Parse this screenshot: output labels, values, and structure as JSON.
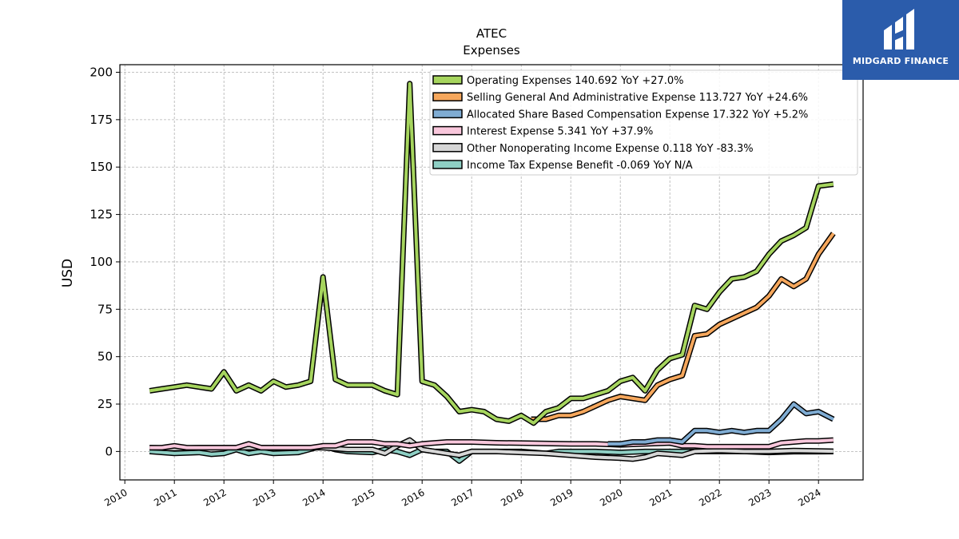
{
  "chart_data": {
    "type": "line",
    "title": "ATEC",
    "subtitle": "Expenses",
    "ylabel": "USD",
    "xlabel": "",
    "xlim": [
      2009.9,
      2024.9
    ],
    "ylim": [
      -15,
      204
    ],
    "y_ticks": [
      0,
      25,
      50,
      75,
      100,
      125,
      150,
      175,
      200
    ],
    "x_ticks": [
      2010,
      2011,
      2012,
      2013,
      2014,
      2015,
      2016,
      2017,
      2018,
      2019,
      2020,
      2021,
      2022,
      2023,
      2024
    ],
    "grid": true,
    "legend_position": "top-right",
    "series": [
      {
        "name": "Operating Expenses",
        "legend": "Operating Expenses  140.692 YoY +27.0%",
        "color": "#a6d55e",
        "points": [
          [
            2010.5,
            32
          ],
          [
            2010.75,
            33
          ],
          [
            2011.0,
            34
          ],
          [
            2011.25,
            35
          ],
          [
            2011.5,
            34
          ],
          [
            2011.75,
            33
          ],
          [
            2012.0,
            42
          ],
          [
            2012.25,
            32
          ],
          [
            2012.5,
            35
          ],
          [
            2012.75,
            32
          ],
          [
            2013.0,
            37
          ],
          [
            2013.25,
            34
          ],
          [
            2013.5,
            35
          ],
          [
            2013.75,
            37
          ],
          [
            2014.0,
            92
          ],
          [
            2014.25,
            38
          ],
          [
            2014.5,
            35
          ],
          [
            2014.75,
            35
          ],
          [
            2015.0,
            35
          ],
          [
            2015.25,
            32
          ],
          [
            2015.5,
            30
          ],
          [
            2015.75,
            194
          ],
          [
            2016.0,
            37
          ],
          [
            2016.25,
            35
          ],
          [
            2016.5,
            29
          ],
          [
            2016.75,
            21
          ],
          [
            2017.0,
            22
          ],
          [
            2017.25,
            21
          ],
          [
            2017.5,
            17
          ],
          [
            2017.75,
            16
          ],
          [
            2018.0,
            19
          ],
          [
            2018.25,
            15
          ],
          [
            2018.5,
            21
          ],
          [
            2018.75,
            23
          ],
          [
            2019.0,
            28
          ],
          [
            2019.25,
            28
          ],
          [
            2019.5,
            30
          ],
          [
            2019.75,
            32
          ],
          [
            2020.0,
            37
          ],
          [
            2020.25,
            39
          ],
          [
            2020.5,
            32
          ],
          [
            2020.75,
            43
          ],
          [
            2021.0,
            49
          ],
          [
            2021.25,
            51
          ],
          [
            2021.5,
            77
          ],
          [
            2021.75,
            75
          ],
          [
            2022.0,
            84
          ],
          [
            2022.25,
            91
          ],
          [
            2022.5,
            92
          ],
          [
            2022.75,
            95
          ],
          [
            2023.0,
            104
          ],
          [
            2023.25,
            111
          ],
          [
            2023.5,
            114
          ],
          [
            2023.75,
            118
          ],
          [
            2024.0,
            140
          ],
          [
            2024.3,
            141
          ]
        ]
      },
      {
        "name": "Selling General And Administrative Expense",
        "legend": "Selling General And Administrative Expense  113.727 YoY +24.6%",
        "color": "#f6a75c",
        "points": [
          [
            2018.2,
            17
          ],
          [
            2018.5,
            17
          ],
          [
            2018.75,
            19
          ],
          [
            2019.0,
            19
          ],
          [
            2019.25,
            21
          ],
          [
            2019.5,
            24
          ],
          [
            2019.75,
            27
          ],
          [
            2020.0,
            29
          ],
          [
            2020.25,
            28
          ],
          [
            2020.5,
            27
          ],
          [
            2020.75,
            35
          ],
          [
            2021.0,
            38
          ],
          [
            2021.25,
            40
          ],
          [
            2021.5,
            61
          ],
          [
            2021.75,
            62
          ],
          [
            2022.0,
            67
          ],
          [
            2022.25,
            70
          ],
          [
            2022.5,
            73
          ],
          [
            2022.75,
            76
          ],
          [
            2023.0,
            82
          ],
          [
            2023.25,
            91
          ],
          [
            2023.5,
            87
          ],
          [
            2023.75,
            91
          ],
          [
            2024.0,
            104
          ],
          [
            2024.3,
            115
          ]
        ]
      },
      {
        "name": "Allocated Share Based Compensation Expense",
        "legend": "Allocated Share Based Compensation Expense  17.322 YoY +5.2%",
        "color": "#7facd3",
        "points": [
          [
            2019.75,
            4
          ],
          [
            2020.0,
            4
          ],
          [
            2020.25,
            5
          ],
          [
            2020.5,
            5
          ],
          [
            2020.75,
            6
          ],
          [
            2021.0,
            6
          ],
          [
            2021.25,
            5
          ],
          [
            2021.5,
            11
          ],
          [
            2021.75,
            11
          ],
          [
            2022.0,
            10
          ],
          [
            2022.25,
            11
          ],
          [
            2022.5,
            10
          ],
          [
            2022.75,
            11
          ],
          [
            2023.0,
            11
          ],
          [
            2023.25,
            17
          ],
          [
            2023.5,
            25
          ],
          [
            2023.75,
            20
          ],
          [
            2024.0,
            21
          ],
          [
            2024.3,
            17
          ]
        ]
      },
      {
        "name": "Interest Expense",
        "legend": "Interest Expense  5.341 YoY +37.9%",
        "color": "#f9c7dc",
        "points": [
          [
            2010.5,
            2
          ],
          [
            2010.75,
            2
          ],
          [
            2011.0,
            3
          ],
          [
            2011.25,
            2
          ],
          [
            2011.5,
            2
          ],
          [
            2011.75,
            2
          ],
          [
            2012.0,
            2
          ],
          [
            2012.25,
            2
          ],
          [
            2012.5,
            4
          ],
          [
            2012.75,
            2
          ],
          [
            2013.0,
            2
          ],
          [
            2013.25,
            2
          ],
          [
            2013.5,
            2
          ],
          [
            2013.75,
            2
          ],
          [
            2014.0,
            3
          ],
          [
            2014.25,
            3
          ],
          [
            2014.5,
            5
          ],
          [
            2014.75,
            5
          ],
          [
            2015.0,
            5
          ],
          [
            2015.25,
            4
          ],
          [
            2015.5,
            4
          ],
          [
            2015.75,
            3
          ],
          [
            2016.0,
            4
          ],
          [
            2016.5,
            5
          ],
          [
            2017.0,
            5
          ],
          [
            2017.5,
            4.6
          ],
          [
            2018.0,
            4.4
          ],
          [
            2018.5,
            4.2
          ],
          [
            2019.0,
            4
          ],
          [
            2019.5,
            4
          ],
          [
            2020.0,
            3.5
          ],
          [
            2020.5,
            4
          ],
          [
            2021.0,
            4.5
          ],
          [
            2021.25,
            3
          ],
          [
            2021.5,
            3
          ],
          [
            2021.75,
            2.5
          ],
          [
            2022.0,
            2.5
          ],
          [
            2022.5,
            2.5
          ],
          [
            2023.0,
            2.5
          ],
          [
            2023.25,
            4.5
          ],
          [
            2023.5,
            5
          ],
          [
            2023.75,
            5.5
          ],
          [
            2024.0,
            5.5
          ],
          [
            2024.3,
            6
          ]
        ]
      },
      {
        "name": "Other Nonoperating Income Expense",
        "legend": "Other Nonoperating Income Expense  0.118 YoY -83.3%",
        "color": "#d6d6d6",
        "points": [
          [
            2010.5,
            2
          ],
          [
            2011.0,
            1.5
          ],
          [
            2011.5,
            2
          ],
          [
            2012.0,
            2
          ],
          [
            2012.5,
            2
          ],
          [
            2013.0,
            2
          ],
          [
            2013.5,
            2
          ],
          [
            2014.0,
            2
          ],
          [
            2014.5,
            1
          ],
          [
            2015.0,
            1
          ],
          [
            2015.25,
            -1
          ],
          [
            2015.5,
            3
          ],
          [
            2015.75,
            6
          ],
          [
            2016.0,
            1
          ],
          [
            2016.25,
            0
          ],
          [
            2016.5,
            -1
          ],
          [
            2016.75,
            -2
          ],
          [
            2017.0,
            0
          ],
          [
            2017.5,
            0
          ],
          [
            2018.0,
            -0.5
          ],
          [
            2018.5,
            -1
          ],
          [
            2019.0,
            -2
          ],
          [
            2019.5,
            -3
          ],
          [
            2020.0,
            -3.5
          ],
          [
            2020.25,
            -4
          ],
          [
            2020.5,
            -3
          ],
          [
            2020.75,
            -1
          ],
          [
            2021.0,
            -1.5
          ],
          [
            2021.25,
            -2
          ],
          [
            2021.5,
            0
          ],
          [
            2022.0,
            0.5
          ],
          [
            2022.5,
            0
          ],
          [
            2023.0,
            0
          ],
          [
            2023.5,
            0.5
          ],
          [
            2024.0,
            0.3
          ],
          [
            2024.3,
            0.1
          ]
        ]
      },
      {
        "name": "Income Tax Expense Benefit",
        "legend": "Income Tax Expense Benefit  -0.069 YoY N/A",
        "color": "#8ecfc4",
        "points": [
          [
            2010.5,
            0
          ],
          [
            2011.0,
            -1
          ],
          [
            2011.5,
            -0.5
          ],
          [
            2011.75,
            -1.5
          ],
          [
            2012.0,
            -1
          ],
          [
            2012.25,
            1
          ],
          [
            2012.5,
            -1
          ],
          [
            2012.75,
            0
          ],
          [
            2013.0,
            -1
          ],
          [
            2013.5,
            -0.5
          ],
          [
            2014.0,
            3
          ],
          [
            2014.25,
            1
          ],
          [
            2014.5,
            0
          ],
          [
            2015.0,
            -0.5
          ],
          [
            2015.25,
            1
          ],
          [
            2015.5,
            0
          ],
          [
            2015.75,
            -2
          ],
          [
            2016.0,
            1
          ],
          [
            2016.25,
            0
          ],
          [
            2016.5,
            0
          ],
          [
            2016.75,
            -5
          ],
          [
            2017.0,
            0
          ],
          [
            2017.5,
            0
          ],
          [
            2018.0,
            0
          ],
          [
            2018.5,
            -1
          ],
          [
            2018.75,
            0
          ],
          [
            2019.0,
            0
          ],
          [
            2019.5,
            0
          ],
          [
            2020.0,
            -0.5
          ],
          [
            2020.5,
            0
          ],
          [
            2021.0,
            0
          ],
          [
            2021.5,
            0
          ],
          [
            2022.0,
            0
          ],
          [
            2022.5,
            0
          ],
          [
            2023.0,
            -0.5
          ],
          [
            2023.5,
            -0.1
          ],
          [
            2024.0,
            -0.1
          ],
          [
            2024.3,
            -0.07
          ]
        ]
      }
    ]
  },
  "branding": {
    "logo_text": "MIDGARD FINANCE",
    "logo_bg": "#2b5cab"
  }
}
